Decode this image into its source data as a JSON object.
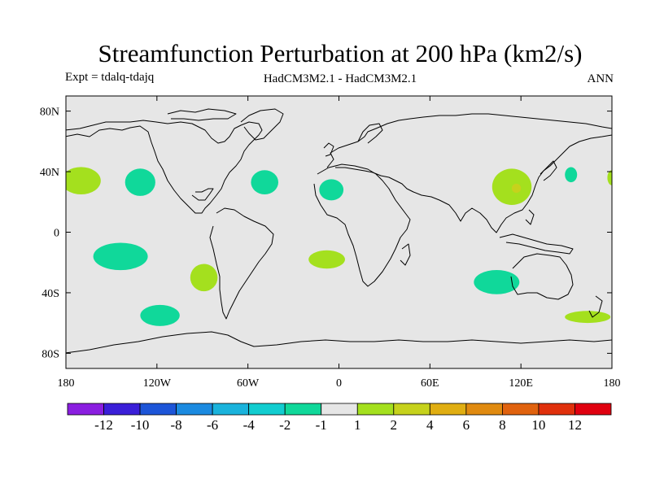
{
  "chart_data": {
    "type": "heatmap",
    "title": "Streamfunction Perturbation at 200 hPa (km2/s)",
    "subtitle_left": "Expt = tdalq-tdajq",
    "subtitle_center": "HadCM3M2.1 - HadCM3M2.1",
    "subtitle_right": "ANN",
    "x_axis": {
      "range": [
        -180,
        180
      ],
      "ticks": [
        -180,
        -120,
        -60,
        0,
        60,
        120,
        180
      ],
      "tick_labels": [
        "180",
        "120W",
        "60W",
        "0",
        "60E",
        "120E",
        "180"
      ]
    },
    "y_axis": {
      "range": [
        -90,
        90
      ],
      "ticks": [
        80,
        40,
        0,
        -40,
        -80
      ],
      "tick_labels": [
        "80N",
        "40N",
        "0",
        "40S",
        "80S"
      ]
    },
    "colorbar": {
      "levels": [
        "-12",
        "-10",
        "-8",
        "-6",
        "-4",
        "-2",
        "-1",
        "1",
        "2",
        "4",
        "6",
        "8",
        "10",
        "12"
      ],
      "colors": [
        "#8a1ee0",
        "#3a1fd8",
        "#1d55d8",
        "#1b8ae0",
        "#1ab3dc",
        "#12cdd0",
        "#10d89a",
        "#e6e6e6",
        "#a4e01e",
        "#c6d21c",
        "#e0ae12",
        "#e08a10",
        "#e0620e",
        "#e0300c",
        "#e00010"
      ]
    },
    "regions": [
      {
        "name": "negative-anomaly-north-pacific-east",
        "value_range": "-2 to -1",
        "lon": -131,
        "lat": 33,
        "lon_radius": 10,
        "lat_radius": 9
      },
      {
        "name": "negative-anomaly-north-atlantic-west",
        "value_range": "-2 to -1",
        "lon": -49,
        "lat": 33,
        "lon_radius": 9,
        "lat_radius": 8
      },
      {
        "name": "negative-anomaly-north-africa",
        "value_range": "-2 to -1",
        "lon": -5,
        "lat": 28,
        "lon_radius": 8,
        "lat_radius": 7
      },
      {
        "name": "negative-anomaly-japan-east",
        "value_range": "-2 to -1",
        "lon": 153,
        "lat": 38,
        "lon_radius": 4,
        "lat_radius": 5
      },
      {
        "name": "negative-anomaly-south-pacific-tropical",
        "value_range": "-2 to -1",
        "lon": -144,
        "lat": -16,
        "lon_radius": 18,
        "lat_radius": 9
      },
      {
        "name": "negative-anomaly-south-pacific-mid",
        "value_range": "-2 to -1",
        "lon": -118,
        "lat": -55,
        "lon_radius": 13,
        "lat_radius": 7
      },
      {
        "name": "negative-anomaly-indian-ocean-south",
        "value_range": "-2 to -1",
        "lon": 104,
        "lat": -33,
        "lon_radius": 15,
        "lat_radius": 8
      },
      {
        "name": "positive-anomaly-north-pacific-dateline",
        "value_range": "1 to 2",
        "lon": -170,
        "lat": 34,
        "lon_radius": 13,
        "lat_radius": 9
      },
      {
        "name": "positive-anomaly-east-asia",
        "value_range": "1 to 4",
        "lon": 114,
        "lat": 30,
        "lon_radius": 13,
        "lat_radius": 12
      },
      {
        "name": "positive-anomaly-dateline-edge",
        "value_range": "1 to 2",
        "lon": 180,
        "lat": 36,
        "lon_radius": 3,
        "lat_radius": 5
      },
      {
        "name": "positive-anomaly-south-america",
        "value_range": "1 to 2",
        "lon": -89,
        "lat": -30,
        "lon_radius": 9,
        "lat_radius": 9
      },
      {
        "name": "positive-anomaly-south-atlantic",
        "value_range": "1 to 2",
        "lon": -8,
        "lat": -18,
        "lon_radius": 12,
        "lat_radius": 6
      },
      {
        "name": "positive-anomaly-south-pacific-west",
        "value_range": "1 to 2",
        "lon": 164,
        "lat": -56,
        "lon_radius": 15,
        "lat_radius": 4
      }
    ]
  }
}
